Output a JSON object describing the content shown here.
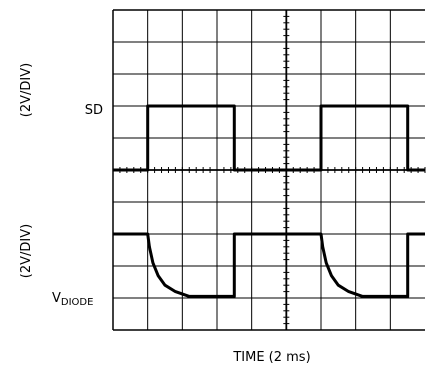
{
  "chart_data": {
    "type": "line",
    "grid": "on",
    "xlabel": "TIME (2 ms)",
    "x_divisions": 9,
    "y_divisions": 10,
    "channels": [
      {
        "name": "SD",
        "scale_label": "(2V/DIV)",
        "baseline_div": 5,
        "x": [
          0,
          1.0,
          1.0,
          3.5,
          3.5,
          6.0,
          6.0,
          8.5,
          8.5,
          9
        ],
        "y": [
          0,
          0,
          2,
          2,
          0,
          0,
          2,
          2,
          0,
          0
        ]
      },
      {
        "name": "V",
        "name_sub": "DIODE",
        "scale_label": "(2V/DIV)",
        "baseline_div": 9,
        "x": [
          0,
          1.0,
          1.05,
          1.15,
          1.3,
          1.5,
          1.8,
          2.2,
          3.5,
          3.5,
          6.0,
          6.05,
          6.15,
          6.3,
          6.5,
          6.8,
          7.2,
          8.5,
          8.5,
          9
        ],
        "y": [
          2,
          2,
          1.6,
          1.1,
          0.7,
          0.4,
          0.2,
          0.05,
          0.05,
          2,
          2,
          1.6,
          1.1,
          0.7,
          0.4,
          0.2,
          0.05,
          0.05,
          2,
          2
        ]
      }
    ]
  }
}
